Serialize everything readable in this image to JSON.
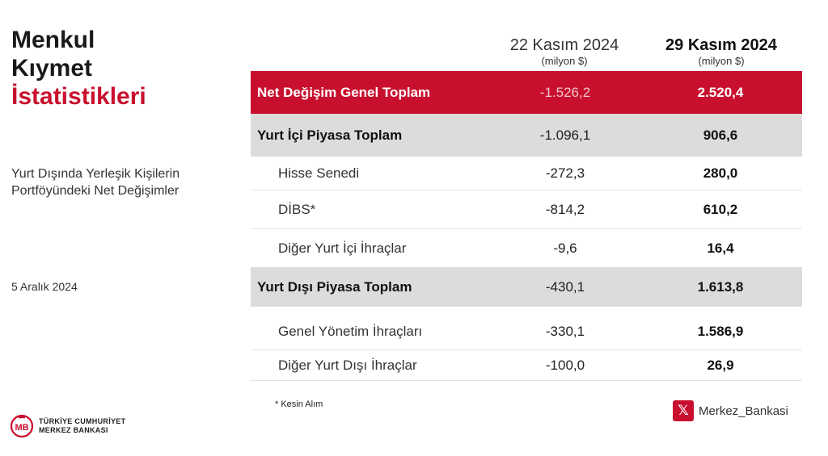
{
  "title": {
    "line1": "Menkul",
    "line2": "Kıymet",
    "line3": "İstatistikleri"
  },
  "subtitle": {
    "line1": "Yurt Dışında Yerleşik Kişilerin",
    "line2": "Portföyündeki Net Değişimler"
  },
  "date": "5 Aralık 2024",
  "columns": [
    {
      "date": "22 Kasım 2024",
      "unit": "(milyon $)"
    },
    {
      "date": "29 Kasım 2024",
      "unit": "(milyon $)"
    }
  ],
  "rows": [
    {
      "label": "Net Değişim Genel Toplam",
      "v1": "-1.526,2",
      "v2": "2.520,4"
    },
    {
      "label": "Yurt İçi Piyasa Toplam",
      "v1": "-1.096,1",
      "v2": "906,6"
    },
    {
      "label": "Hisse Senedi",
      "v1": "-272,3",
      "v2": "280,0"
    },
    {
      "label": "DİBS*",
      "v1": "-814,2",
      "v2": "610,2"
    },
    {
      "label": "Diğer Yurt İçi İhraçlar",
      "v1": "-9,6",
      "v2": "16,4"
    },
    {
      "label": "Yurt Dışı Piyasa Toplam",
      "v1": "-430,1",
      "v2": "1.613,8"
    },
    {
      "label": "Genel Yönetim İhraçları",
      "v1": "-330,1",
      "v2": "1.586,9"
    },
    {
      "label": "Diğer Yurt Dışı İhraçlar",
      "v1": "-100,0",
      "v2": "26,9"
    }
  ],
  "footnote": "* Kesin Alım",
  "logo": {
    "line1": "TÜRKİYE CUMHURİYET",
    "line2": "MERKEZ BANKASI",
    "icon": "tcmb-logo-icon"
  },
  "social": {
    "icon": "x-icon",
    "glyph": "𝕏",
    "handle": "Merkez_Bankasi"
  },
  "colors": {
    "accent": "#c8102e",
    "grey_row": "#dcdcdc"
  }
}
